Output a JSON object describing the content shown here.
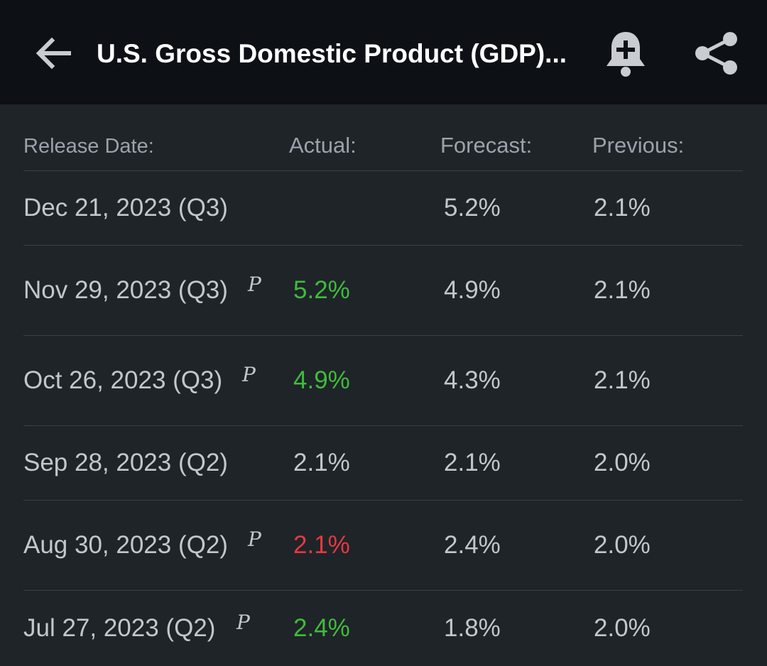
{
  "header": {
    "title": "U.S. Gross Domestic Product (GDP)...",
    "icons": {
      "back": "back-arrow-icon",
      "alert": "bell-plus-icon",
      "share": "share-icon"
    }
  },
  "columns": {
    "date": "Release Date:",
    "actual": "Actual:",
    "forecast": "Forecast:",
    "previous": "Previous:"
  },
  "colors": {
    "background": "#1f2429",
    "topbar": "#0d1116",
    "text": "#c2c7cc",
    "header_text": "#9ba2a9",
    "positive": "#3fbc3a",
    "negative": "#e5393f",
    "divider": "#3a4047"
  },
  "rows": [
    {
      "date": "Dec 21, 2023 (Q3)",
      "prelim": "",
      "actual": "",
      "actual_color": "neutral",
      "forecast": "5.2%",
      "previous": "2.1%"
    },
    {
      "date": "Nov 29, 2023 (Q3)",
      "prelim": "P",
      "actual": "5.2%",
      "actual_color": "green",
      "forecast": "4.9%",
      "previous": "2.1%"
    },
    {
      "date": "Oct 26, 2023 (Q3)",
      "prelim": "P",
      "actual": "4.9%",
      "actual_color": "green",
      "forecast": "4.3%",
      "previous": "2.1%"
    },
    {
      "date": "Sep 28, 2023 (Q2)",
      "prelim": "",
      "actual": "2.1%",
      "actual_color": "neutral",
      "forecast": "2.1%",
      "previous": "2.0%"
    },
    {
      "date": "Aug 30, 2023 (Q2)",
      "prelim": "P",
      "actual": "2.1%",
      "actual_color": "red",
      "forecast": "2.4%",
      "previous": "2.0%"
    },
    {
      "date": "Jul 27, 2023 (Q2)",
      "prelim": "P",
      "actual": "2.4%",
      "actual_color": "green",
      "forecast": "1.8%",
      "previous": "2.0%"
    }
  ]
}
